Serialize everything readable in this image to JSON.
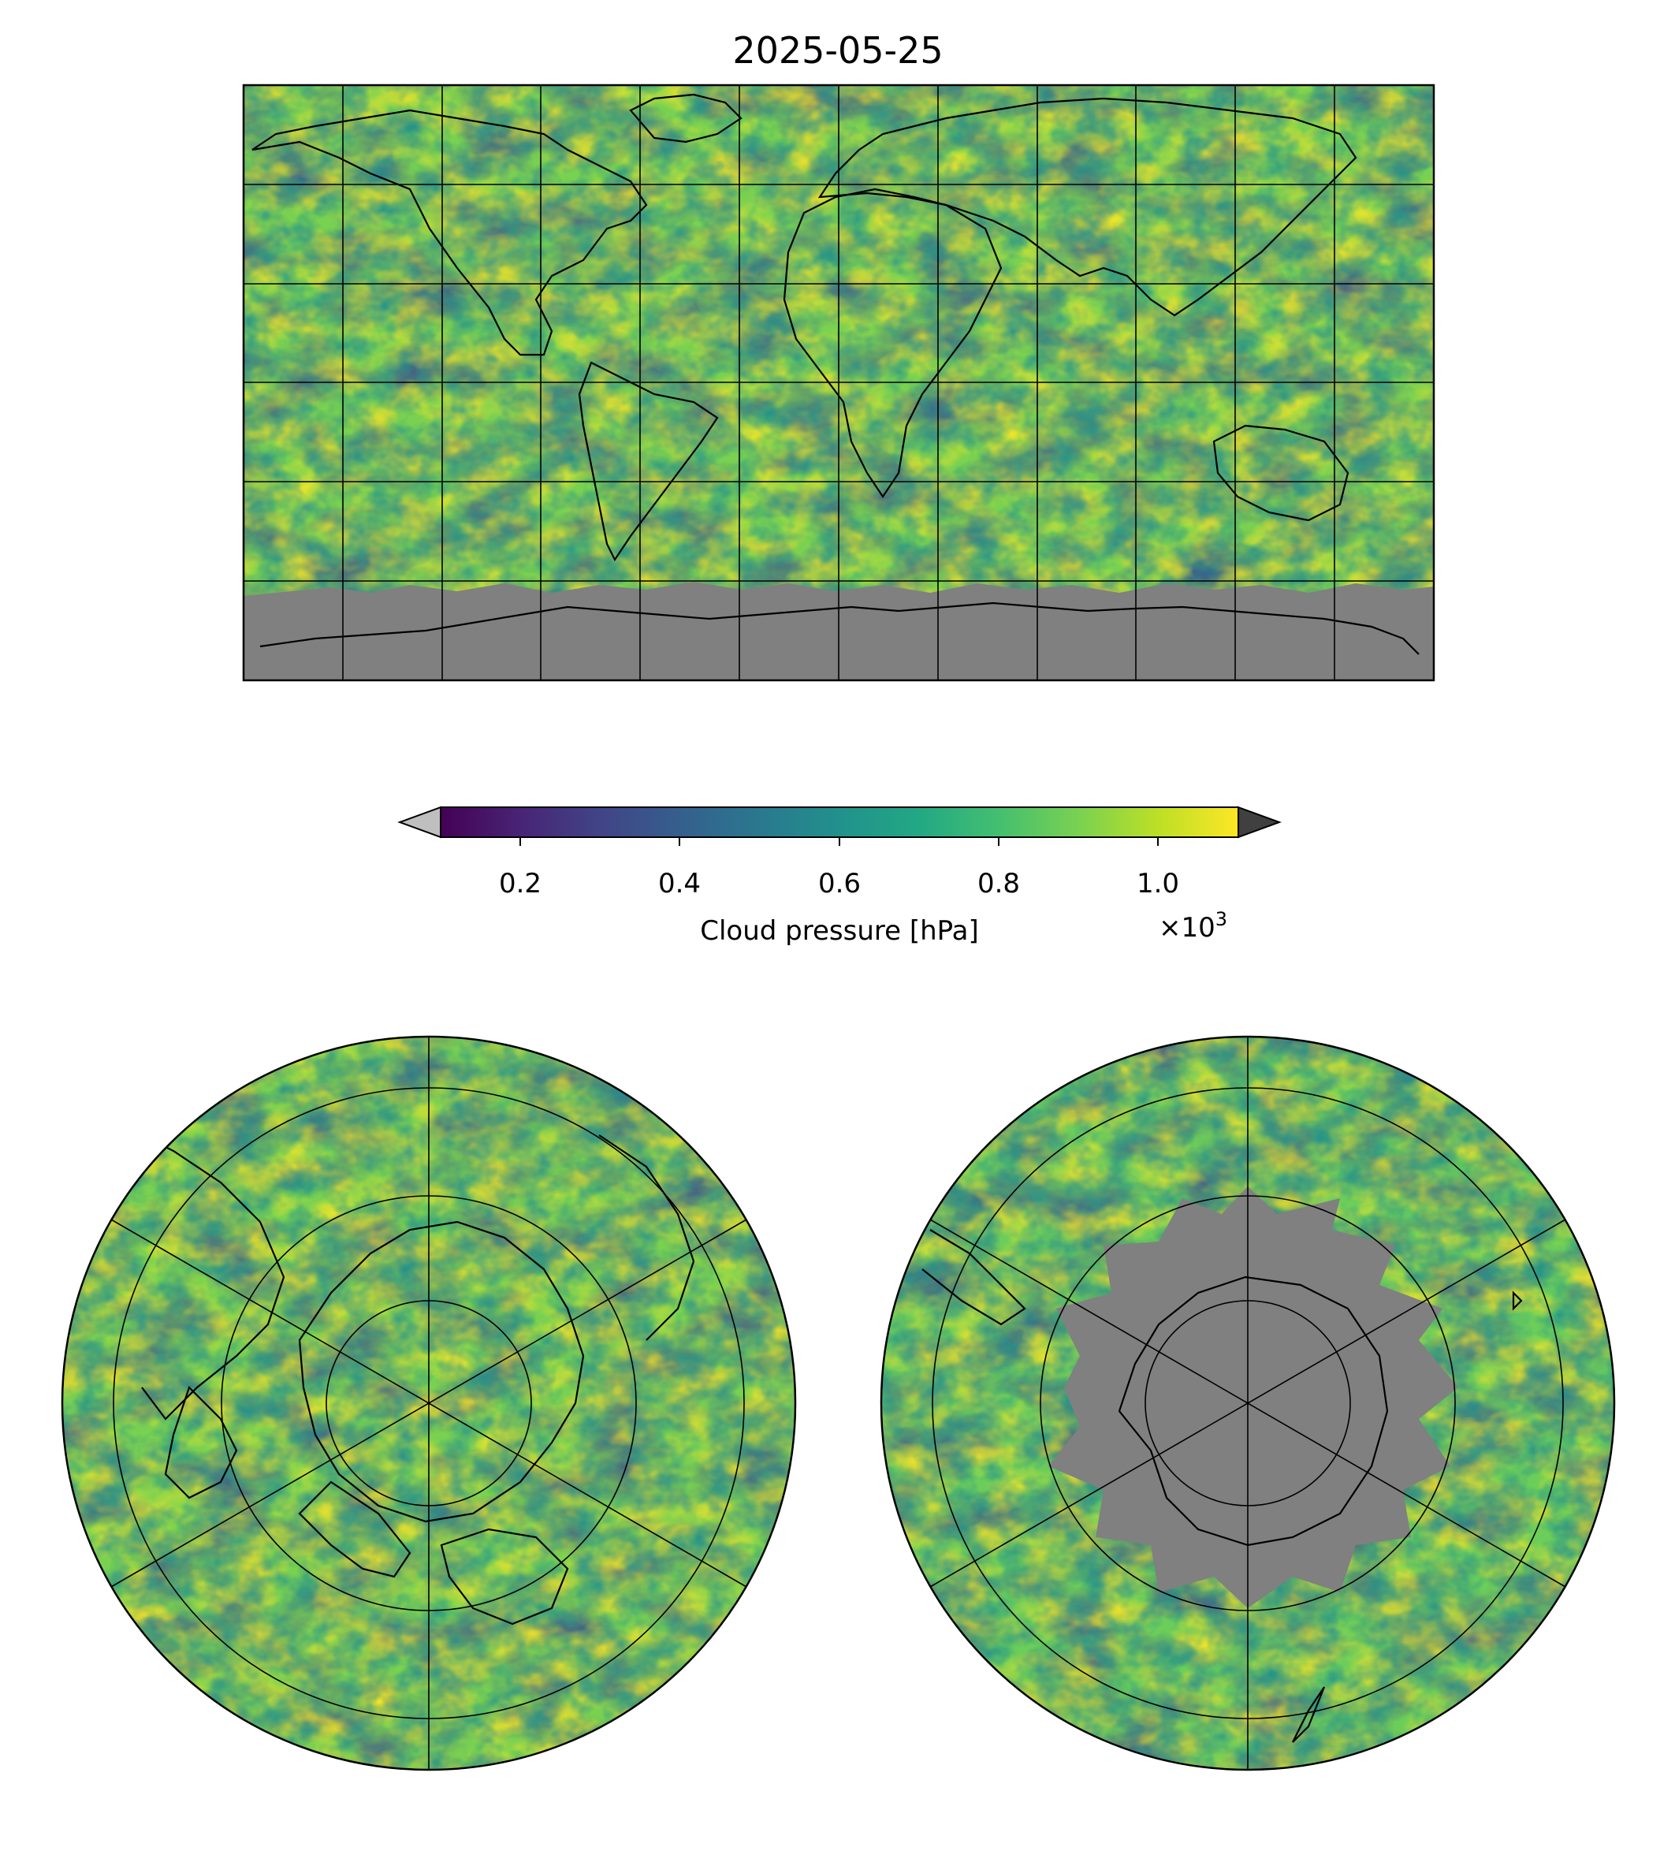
{
  "figure": {
    "title": "2025-05-25"
  },
  "colorbar": {
    "label": "Cloud pressure [hPa]",
    "multiplier_base": "×10",
    "multiplier_exp": "3",
    "ticks": [
      "0.2",
      "0.4",
      "0.6",
      "0.8",
      "1.0"
    ],
    "range": [
      0.1,
      1.1
    ],
    "colormap": "viridis",
    "under_color": "#bfbfbf",
    "over_color": "#404040",
    "extend": "both"
  },
  "maps": [
    {
      "name": "global-map",
      "projection": "equirectangular",
      "gridlines": true,
      "no_data_color": "#808080"
    },
    {
      "name": "north-polar-map",
      "projection": "north-polar-stereographic",
      "gridlines": true
    },
    {
      "name": "south-polar-map",
      "projection": "south-polar-stereographic",
      "gridlines": true,
      "no_data_color": "#808080"
    }
  ]
}
